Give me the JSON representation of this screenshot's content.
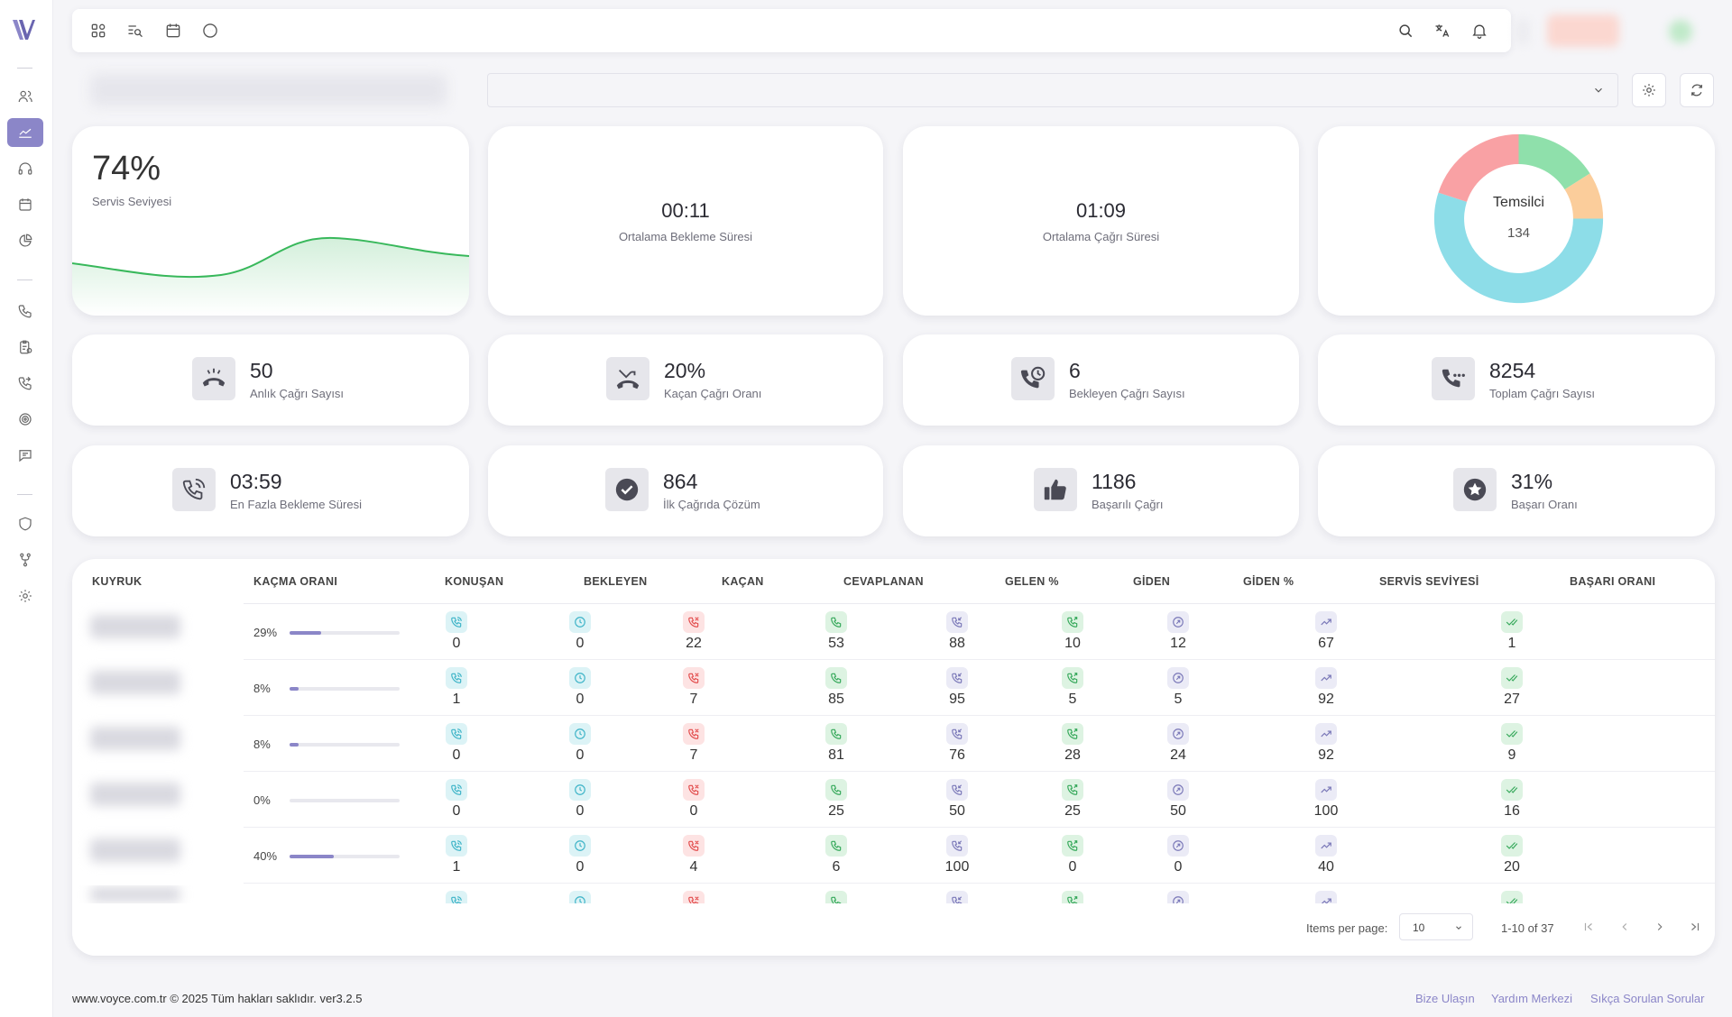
{
  "sidebar": {
    "logo": "voyce-logo",
    "items": [
      {
        "name": "users-icon",
        "active": false
      },
      {
        "name": "dashboard-chart-icon",
        "active": true
      },
      {
        "name": "headset-icon",
        "active": false
      },
      {
        "name": "calendar-icon",
        "active": false
      },
      {
        "name": "pie-chart-icon",
        "active": false
      },
      {
        "name": "phone-icon",
        "active": false
      },
      {
        "name": "clipboard-icon",
        "active": false
      },
      {
        "name": "phone-forward-icon",
        "active": false
      },
      {
        "name": "target-icon",
        "active": false
      },
      {
        "name": "message-icon",
        "active": false
      },
      {
        "name": "shield-icon",
        "active": false
      },
      {
        "name": "branch-icon",
        "active": false
      },
      {
        "name": "gear-icon",
        "active": false
      }
    ]
  },
  "topbar": {
    "left_icons": [
      "grid-icon",
      "search-list-icon",
      "calendar-icon",
      "chat-icon"
    ],
    "right_icons": [
      "search-icon",
      "translate-icon",
      "bell-icon"
    ]
  },
  "top_cards": {
    "service_level": {
      "value": "74%",
      "label": "Servis Seviyesi"
    },
    "avg_wait": {
      "value": "00:11",
      "label": "Ortalama Bekleme Süresi"
    },
    "avg_call": {
      "value": "01:09",
      "label": "Ortalama Çağrı Süresi"
    },
    "agents": {
      "title": "Temsilci",
      "value": "134",
      "segments": [
        {
          "value": 0.16,
          "color": "#8fe0ab"
        },
        {
          "value": 0.09,
          "color": "#fbcd9b"
        },
        {
          "value": 0.55,
          "color": "#8ddde8"
        },
        {
          "value": 0.2,
          "color": "#f9a1a4"
        }
      ]
    }
  },
  "stat_cards": [
    {
      "value": "50",
      "label": "Anlık Çağrı Sayısı",
      "icon": "phone-hangup-icon"
    },
    {
      "value": "20%",
      "label": "Kaçan Çağrı Oranı",
      "icon": "missed-call-icon"
    },
    {
      "value": "6",
      "label": "Bekleyen Çağrı Sayısı",
      "icon": "phone-clock-icon"
    },
    {
      "value": "8254",
      "label": "Toplam Çağrı Sayısı",
      "icon": "phone-dots-icon"
    },
    {
      "value": "03:59",
      "label": "En Fazla Bekleme Süresi",
      "icon": "phone-ringing-icon"
    },
    {
      "value": "864",
      "label": "İlk Çağrıda Çözüm",
      "icon": "check-circle-icon"
    },
    {
      "value": "1186",
      "label": "Başarılı Çağrı",
      "icon": "thumbs-up-icon"
    },
    {
      "value": "31%",
      "label": "Başarı Oranı",
      "icon": "star-circle-icon"
    }
  ],
  "table": {
    "headers": [
      "KUYRUK",
      "KAÇMA ORANI",
      "KONUŞAN",
      "BEKLEYEN",
      "KAÇAN",
      "CEVAPLANAN",
      "GELEN %",
      "GİDEN",
      "GİDEN %",
      "SERVİS SEVİYESİ",
      "BAŞARI ORANI"
    ],
    "rows": [
      {
        "rate": "29%",
        "rate_frac": 0.29,
        "cells": [
          "0",
          "0",
          "22",
          "53",
          "88",
          "10",
          "12",
          "67",
          "1"
        ]
      },
      {
        "rate": "8%",
        "rate_frac": 0.08,
        "cells": [
          "1",
          "0",
          "7",
          "85",
          "95",
          "5",
          "5",
          "92",
          "27"
        ]
      },
      {
        "rate": "8%",
        "rate_frac": 0.08,
        "cells": [
          "0",
          "0",
          "7",
          "81",
          "76",
          "28",
          "24",
          "92",
          "9"
        ]
      },
      {
        "rate": "0%",
        "rate_frac": 0.0,
        "cells": [
          "0",
          "0",
          "0",
          "25",
          "50",
          "25",
          "50",
          "100",
          "16"
        ]
      },
      {
        "rate": "40%",
        "rate_frac": 0.4,
        "cells": [
          "1",
          "0",
          "4",
          "6",
          "100",
          "0",
          "0",
          "40",
          "20"
        ]
      }
    ],
    "pagination": {
      "items_per_page_label": "Items per page:",
      "items_per_page": "10",
      "range": "1-10 of 37"
    }
  },
  "footer": {
    "copyright": "www.voyce.com.tr © 2025 Tüm hakları saklıdır. ver3.2.5",
    "links": [
      "Bize Ulaşın",
      "Yardım Merkezi",
      "Sıkça Sorulan Sorular"
    ]
  }
}
